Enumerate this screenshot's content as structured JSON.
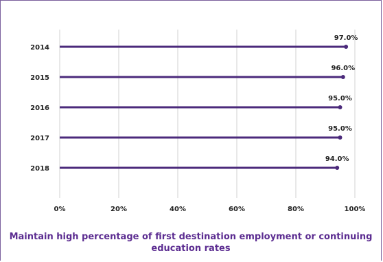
{
  "chart_data": {
    "type": "lollipop",
    "title": "Maintain high percentage of first destination employment or continuing education rates",
    "categories": [
      "2014",
      "2015",
      "2016",
      "2017",
      "2018"
    ],
    "values": [
      97.0,
      96.0,
      95.0,
      95.0,
      94.0
    ],
    "value_labels": [
      "97.0%",
      "96.0%",
      "95.0%",
      "95.0%",
      "94.0%"
    ],
    "xlim": [
      0,
      100
    ],
    "x_ticks": [
      0,
      20,
      40,
      60,
      80,
      100
    ],
    "x_tick_labels": [
      "0%",
      "20%",
      "40%",
      "60%",
      "80%",
      "100%"
    ],
    "orientation": "horizontal",
    "grid": true,
    "colors": {
      "series": "#4b2a7b",
      "grid": "#d0d0d0",
      "title": "#5c2d91"
    }
  }
}
